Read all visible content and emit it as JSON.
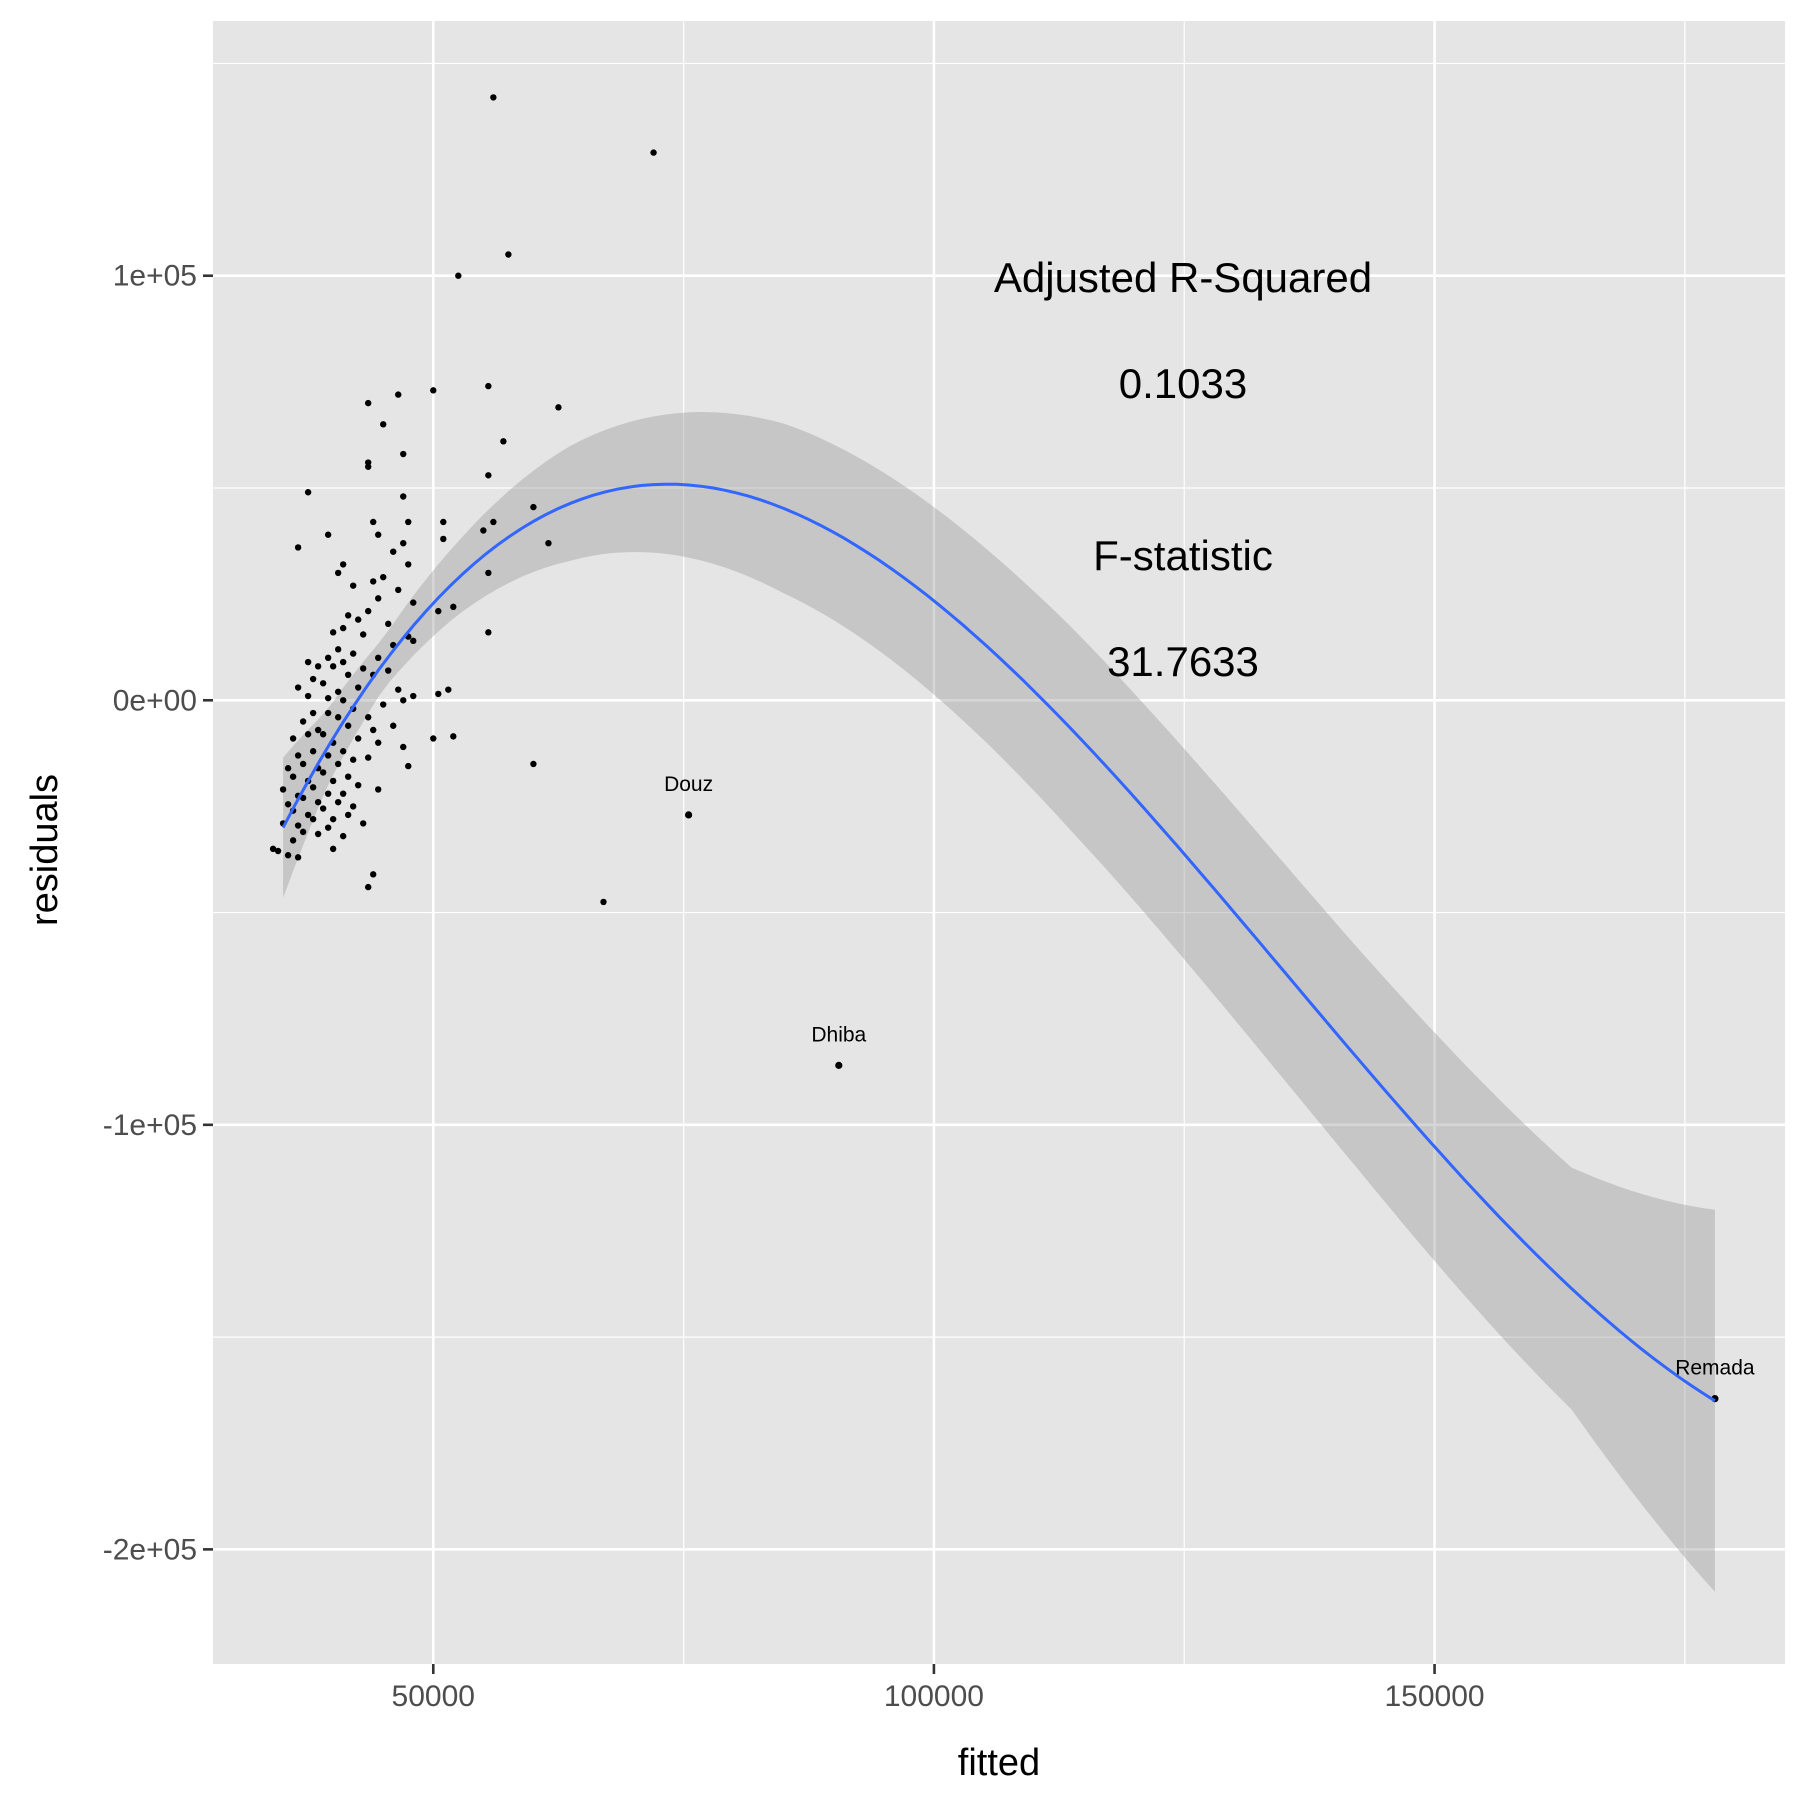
{
  "chart_data": {
    "type": "scatter",
    "title": "",
    "xlabel": "fitted",
    "ylabel": "residuals",
    "xlim": [
      28000,
      185000
    ],
    "ylim": [
      -227000,
      160000
    ],
    "x_ticks": [
      50000,
      100000,
      150000
    ],
    "x_tick_labels": [
      "50000",
      "100000",
      "150000"
    ],
    "y_ticks": [
      100000,
      0,
      -100000,
      -200000
    ],
    "y_tick_labels": [
      "1e+05",
      "0e+00",
      "-1e+05",
      "-2e+05"
    ],
    "grid": true,
    "annotations": {
      "r2_label": "Adjusted R-Squared",
      "r2_value": "0.1033",
      "f_label": "F-statistic",
      "f_value": "31.7633"
    },
    "labeled_points": [
      {
        "label": "Douz",
        "x": 75500,
        "y": -27000
      },
      {
        "label": "Dhiba",
        "x": 90500,
        "y": -86000
      },
      {
        "label": "Remada",
        "x": 178000,
        "y": -164500
      }
    ],
    "points": [
      [
        56000,
        142000
      ],
      [
        72000,
        129000
      ],
      [
        57500,
        105000
      ],
      [
        52500,
        100000
      ],
      [
        55500,
        74000
      ],
      [
        50000,
        73000
      ],
      [
        46500,
        72000
      ],
      [
        43500,
        70000
      ],
      [
        62500,
        69000
      ],
      [
        45000,
        65000
      ],
      [
        57000,
        61000
      ],
      [
        47000,
        58000
      ],
      [
        43500,
        56000
      ],
      [
        43500,
        55000
      ],
      [
        55500,
        53000
      ],
      [
        37500,
        49000
      ],
      [
        47000,
        48000
      ],
      [
        60000,
        45500
      ],
      [
        44000,
        42000
      ],
      [
        56000,
        42000
      ],
      [
        51000,
        42000
      ],
      [
        47500,
        42000
      ],
      [
        39500,
        39000
      ],
      [
        44500,
        39000
      ],
      [
        61500,
        37000
      ],
      [
        47000,
        37000
      ],
      [
        51000,
        38000
      ],
      [
        36500,
        36000
      ],
      [
        55000,
        40000
      ],
      [
        46000,
        35000
      ],
      [
        41000,
        32000
      ],
      [
        47500,
        32000
      ],
      [
        40500,
        30000
      ],
      [
        55500,
        30000
      ],
      [
        44000,
        28000
      ],
      [
        45000,
        29000
      ],
      [
        42000,
        27000
      ],
      [
        46500,
        26000
      ],
      [
        44500,
        24000
      ],
      [
        48000,
        23000
      ],
      [
        52000,
        22000
      ],
      [
        50500,
        21000
      ],
      [
        43500,
        21000
      ],
      [
        41500,
        20000
      ],
      [
        42500,
        19000
      ],
      [
        45500,
        18000
      ],
      [
        41000,
        17000
      ],
      [
        40000,
        16000
      ],
      [
        43000,
        15500
      ],
      [
        47500,
        15000
      ],
      [
        55500,
        16000
      ],
      [
        48000,
        14000
      ],
      [
        46000,
        13000
      ],
      [
        40500,
        12000
      ],
      [
        42000,
        11000
      ],
      [
        39500,
        10000
      ],
      [
        44500,
        10000
      ],
      [
        41000,
        9000
      ],
      [
        37500,
        9000
      ],
      [
        38500,
        8000
      ],
      [
        40000,
        8000
      ],
      [
        43000,
        7500
      ],
      [
        45500,
        7000
      ],
      [
        44000,
        6000
      ],
      [
        41500,
        6000
      ],
      [
        38000,
        5000
      ],
      [
        39000,
        4000
      ],
      [
        42500,
        3000
      ],
      [
        36500,
        3000
      ],
      [
        46500,
        2500
      ],
      [
        51500,
        2500
      ],
      [
        40500,
        2000
      ],
      [
        50500,
        1500
      ],
      [
        37500,
        1000
      ],
      [
        39500,
        500
      ],
      [
        41000,
        0
      ],
      [
        45000,
        -1000
      ],
      [
        47000,
        0
      ],
      [
        48000,
        1000
      ],
      [
        42000,
        -2000
      ],
      [
        38000,
        -3000
      ],
      [
        39500,
        -3000
      ],
      [
        40500,
        -4000
      ],
      [
        43500,
        -4000
      ],
      [
        37000,
        -5000
      ],
      [
        41500,
        -6000
      ],
      [
        46000,
        -6000
      ],
      [
        44000,
        -7000
      ],
      [
        38500,
        -7000
      ],
      [
        39000,
        -8000
      ],
      [
        37500,
        -8000
      ],
      [
        42500,
        -9000
      ],
      [
        36000,
        -9000
      ],
      [
        40000,
        -10000
      ],
      [
        44500,
        -10000
      ],
      [
        50000,
        -9000
      ],
      [
        52000,
        -8500
      ],
      [
        47000,
        -11000
      ],
      [
        41000,
        -12000
      ],
      [
        38000,
        -12000
      ],
      [
        39500,
        -13000
      ],
      [
        36500,
        -13000
      ],
      [
        42000,
        -14000
      ],
      [
        43500,
        -13500
      ],
      [
        40500,
        -15000
      ],
      [
        37000,
        -15000
      ],
      [
        38500,
        -16000
      ],
      [
        35500,
        -16000
      ],
      [
        39000,
        -17000
      ],
      [
        41500,
        -18000
      ],
      [
        47500,
        -15500
      ],
      [
        60000,
        -15000
      ],
      [
        36000,
        -18000
      ],
      [
        37500,
        -19000
      ],
      [
        40000,
        -19000
      ],
      [
        42500,
        -20000
      ],
      [
        38000,
        -20500
      ],
      [
        44500,
        -21000
      ],
      [
        35000,
        -21000
      ],
      [
        39500,
        -22000
      ],
      [
        36500,
        -22500
      ],
      [
        41000,
        -22000
      ],
      [
        37000,
        -23000
      ],
      [
        38500,
        -24000
      ],
      [
        40500,
        -24000
      ],
      [
        35500,
        -24500
      ],
      [
        42000,
        -25000
      ],
      [
        39000,
        -25500
      ],
      [
        36000,
        -26000
      ],
      [
        37500,
        -27000
      ],
      [
        41500,
        -27000
      ],
      [
        38000,
        -28000
      ],
      [
        40000,
        -28000
      ],
      [
        35000,
        -29000
      ],
      [
        36500,
        -29500
      ],
      [
        43000,
        -29000
      ],
      [
        39500,
        -30000
      ],
      [
        37000,
        -31000
      ],
      [
        38500,
        -31500
      ],
      [
        41000,
        -32000
      ],
      [
        36000,
        -33000
      ],
      [
        34000,
        -35000
      ],
      [
        34500,
        -35500
      ],
      [
        40000,
        -35000
      ],
      [
        35500,
        -36500
      ],
      [
        36500,
        -37000
      ],
      [
        44000,
        -41000
      ],
      [
        43500,
        -44000
      ],
      [
        67000,
        -47500
      ]
    ]
  }
}
